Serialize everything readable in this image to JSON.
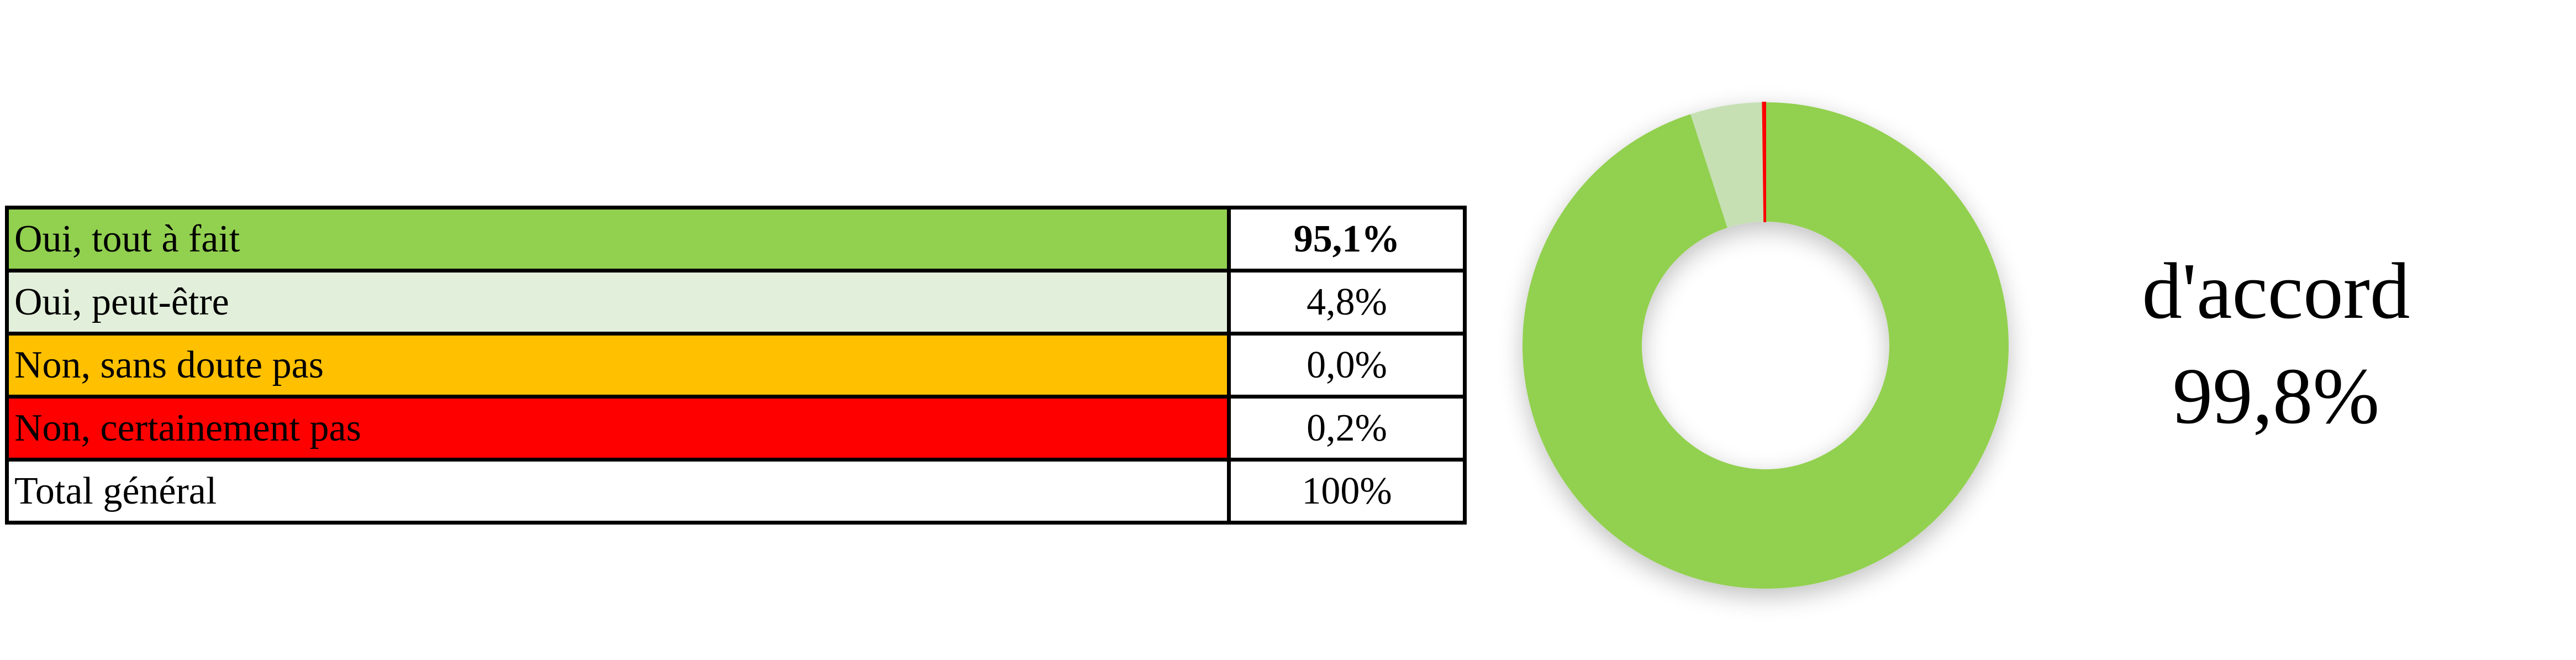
{
  "chart_data": {
    "type": "pie",
    "style": "donut",
    "categories": [
      "Oui, tout à fait",
      "Oui, peut-être",
      "Non, sans doute pas",
      "Non, certainement pas"
    ],
    "values": [
      95.1,
      4.8,
      0.0,
      0.2
    ],
    "colors": [
      "#92d050",
      "#c6e0b4",
      "#ffc000",
      "#ff0000"
    ],
    "start": "top",
    "direction": "clockwise"
  },
  "table": {
    "rows": [
      {
        "label": "Oui, tout à fait",
        "value": "95,1%",
        "bg": "#92d050",
        "bold": true
      },
      {
        "label": "Oui, peut-être",
        "value": "4,8%",
        "bg": "#e2efda",
        "bold": false
      },
      {
        "label": "Non, sans doute pas",
        "value": "0,0%",
        "bg": "#ffc000",
        "bold": false
      },
      {
        "label": "Non, certainement pas",
        "value": "0,2%",
        "bg": "#ff0000",
        "bold": false
      },
      {
        "label": "Total général",
        "value": "100%",
        "bg": "#ffffff",
        "bold": false
      }
    ]
  },
  "summary": {
    "label": "d'accord",
    "value": "99,8%"
  }
}
